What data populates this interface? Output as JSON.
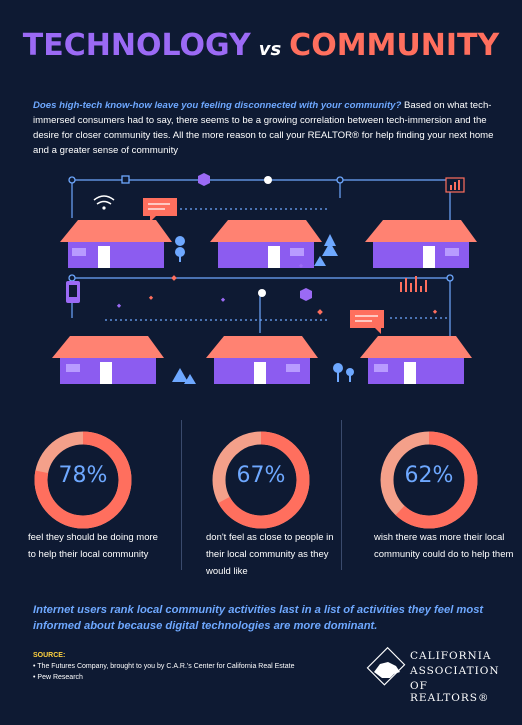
{
  "header": {
    "title_left": "TECHNOLOGY",
    "title_vs": "vs",
    "title_right": "COMMUNITY"
  },
  "intro": {
    "lead": "Does high-tech know-how leave you feeling disconnected with your community?",
    "body": " Based on what tech-immersed consumers had to say, there seems to be a growing correlation between tech-immersion and the desire for closer community ties. All the more reason to call your REALTOR® for help finding your next home and a greater sense of community"
  },
  "stats": [
    {
      "value": "78%",
      "fraction": 0.78,
      "description": "feel they should be doing more to help their local community"
    },
    {
      "value": "67%",
      "fraction": 0.67,
      "description": "don't feel as close to people in their local community as they would like"
    },
    {
      "value": "62%",
      "fraction": 0.62,
      "description": "wish there was more their local community could do to help them"
    }
  ],
  "summary": "Internet users rank local community activities last in a list of activities they feel most informed about because digital technologies are more dominant.",
  "sources": {
    "heading": "SOURCE:",
    "items": [
      "• The Futures Company, brought to you by C.A.R.'s Center for California Real Estate",
      "• Pew Research"
    ]
  },
  "logo": {
    "line1": "CALIFORNIA",
    "line2": "ASSOCIATION",
    "line3": "OF REALTORS®"
  },
  "colors": {
    "background": "#0e1a33",
    "purple": "#9b6af5",
    "coral": "#ff6f5e",
    "blue": "#6ea8ff",
    "ring_track": "#f4a08a",
    "ring_fill": "#ff6f5e"
  }
}
